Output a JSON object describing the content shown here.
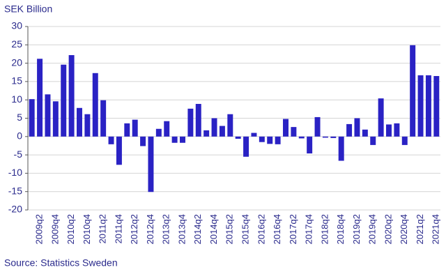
{
  "chart_data": {
    "type": "bar",
    "title": "SEK Billion",
    "source": "Source: Statistics Sweden",
    "categories": [
      null,
      "2009q2",
      null,
      "2009q4",
      null,
      "2010q2",
      null,
      "2010q4",
      null,
      "2011q2",
      null,
      "2011q4",
      null,
      "2012q2",
      null,
      "2012q4",
      null,
      "2013q2",
      null,
      "2013q4",
      null,
      "2014q2",
      null,
      "2014q4",
      null,
      "2015q2",
      null,
      "2015q4",
      null,
      "2016q2",
      null,
      "2016q4",
      null,
      "2017q2",
      null,
      "2017q4",
      null,
      "2018q2",
      null,
      "2018q4",
      null,
      "2019q2",
      null,
      "2019q4",
      null,
      "2020q2",
      null,
      "2020q4",
      null,
      "2021q2",
      null,
      "2021q4"
    ],
    "values": [
      10.2,
      21.2,
      11.5,
      9.6,
      19.6,
      22.2,
      7.8,
      6.1,
      17.3,
      9.9,
      -2.1,
      -7.7,
      3.6,
      4.6,
      -2.6,
      -15.1,
      2.1,
      4.2,
      -1.7,
      -1.7,
      7.6,
      8.9,
      1.7,
      5.0,
      2.9,
      6.1,
      -0.6,
      -5.5,
      1.0,
      -1.5,
      -2.0,
      -2.1,
      4.8,
      2.6,
      -0.5,
      -4.6,
      5.3,
      -0.3,
      -0.4,
      -6.6,
      3.4,
      5.0,
      1.9,
      -2.3,
      10.4,
      3.3,
      3.6,
      -2.3,
      24.9,
      16.7,
      16.7,
      16.5
    ],
    "color": "#2a22c4",
    "ylim": [
      -20,
      30
    ],
    "yticks": [
      -20,
      -15,
      -10,
      -5,
      0,
      5,
      10,
      15,
      20,
      25,
      30
    ],
    "grid": true
  }
}
